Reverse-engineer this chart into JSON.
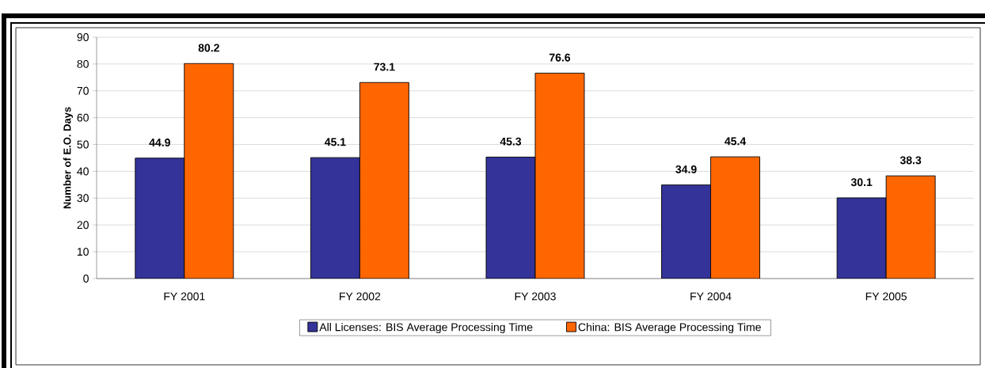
{
  "chart_data": {
    "type": "bar",
    "ylabel": "Number of E.O. Days",
    "categories": [
      "FY 2001",
      "FY 2002",
      "FY 2003",
      "FY 2004",
      "FY 2005"
    ],
    "series": [
      {
        "name": "All Licenses: BIS Average Processing Time",
        "color": "#333399",
        "values": [
          44.9,
          45.1,
          45.3,
          34.9,
          30.1
        ]
      },
      {
        "name": "China: BIS Average Processing Time",
        "color": "#ff6600",
        "values": [
          80.2,
          73.1,
          76.6,
          45.4,
          38.3
        ]
      }
    ],
    "ylim": [
      0,
      90
    ],
    "yticks": [
      0,
      10,
      20,
      30,
      40,
      50,
      60,
      70,
      80,
      90
    ],
    "grid": "y",
    "legend": "bottom",
    "data_labels": true
  }
}
